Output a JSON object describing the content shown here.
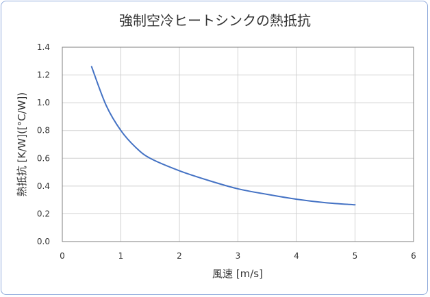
{
  "chart_data": {
    "type": "line",
    "title": "強制空冷ヒートシンクの熱抵抗",
    "xlabel": "風速 [m/s]",
    "ylabel": "熱抵抗 [K/W]([°C/W])",
    "xlim": [
      0,
      6
    ],
    "ylim": [
      0,
      1.4
    ],
    "x_ticks": [
      "0",
      "1",
      "2",
      "3",
      "4",
      "5",
      "6"
    ],
    "y_ticks": [
      "0.0",
      "0.2",
      "0.4",
      "0.6",
      "0.8",
      "1.0",
      "1.2",
      "1.4"
    ],
    "grid": true,
    "legend": "none",
    "series": [
      {
        "x": [
          0.5,
          0.75,
          1.0,
          1.25,
          1.5,
          2.0,
          2.5,
          3.0,
          3.5,
          4.0,
          4.5,
          5.0
        ],
        "y": [
          1.26,
          0.98,
          0.8,
          0.68,
          0.6,
          0.51,
          0.44,
          0.38,
          0.34,
          0.305,
          0.28,
          0.265
        ],
        "color": "#4472c4"
      }
    ]
  }
}
